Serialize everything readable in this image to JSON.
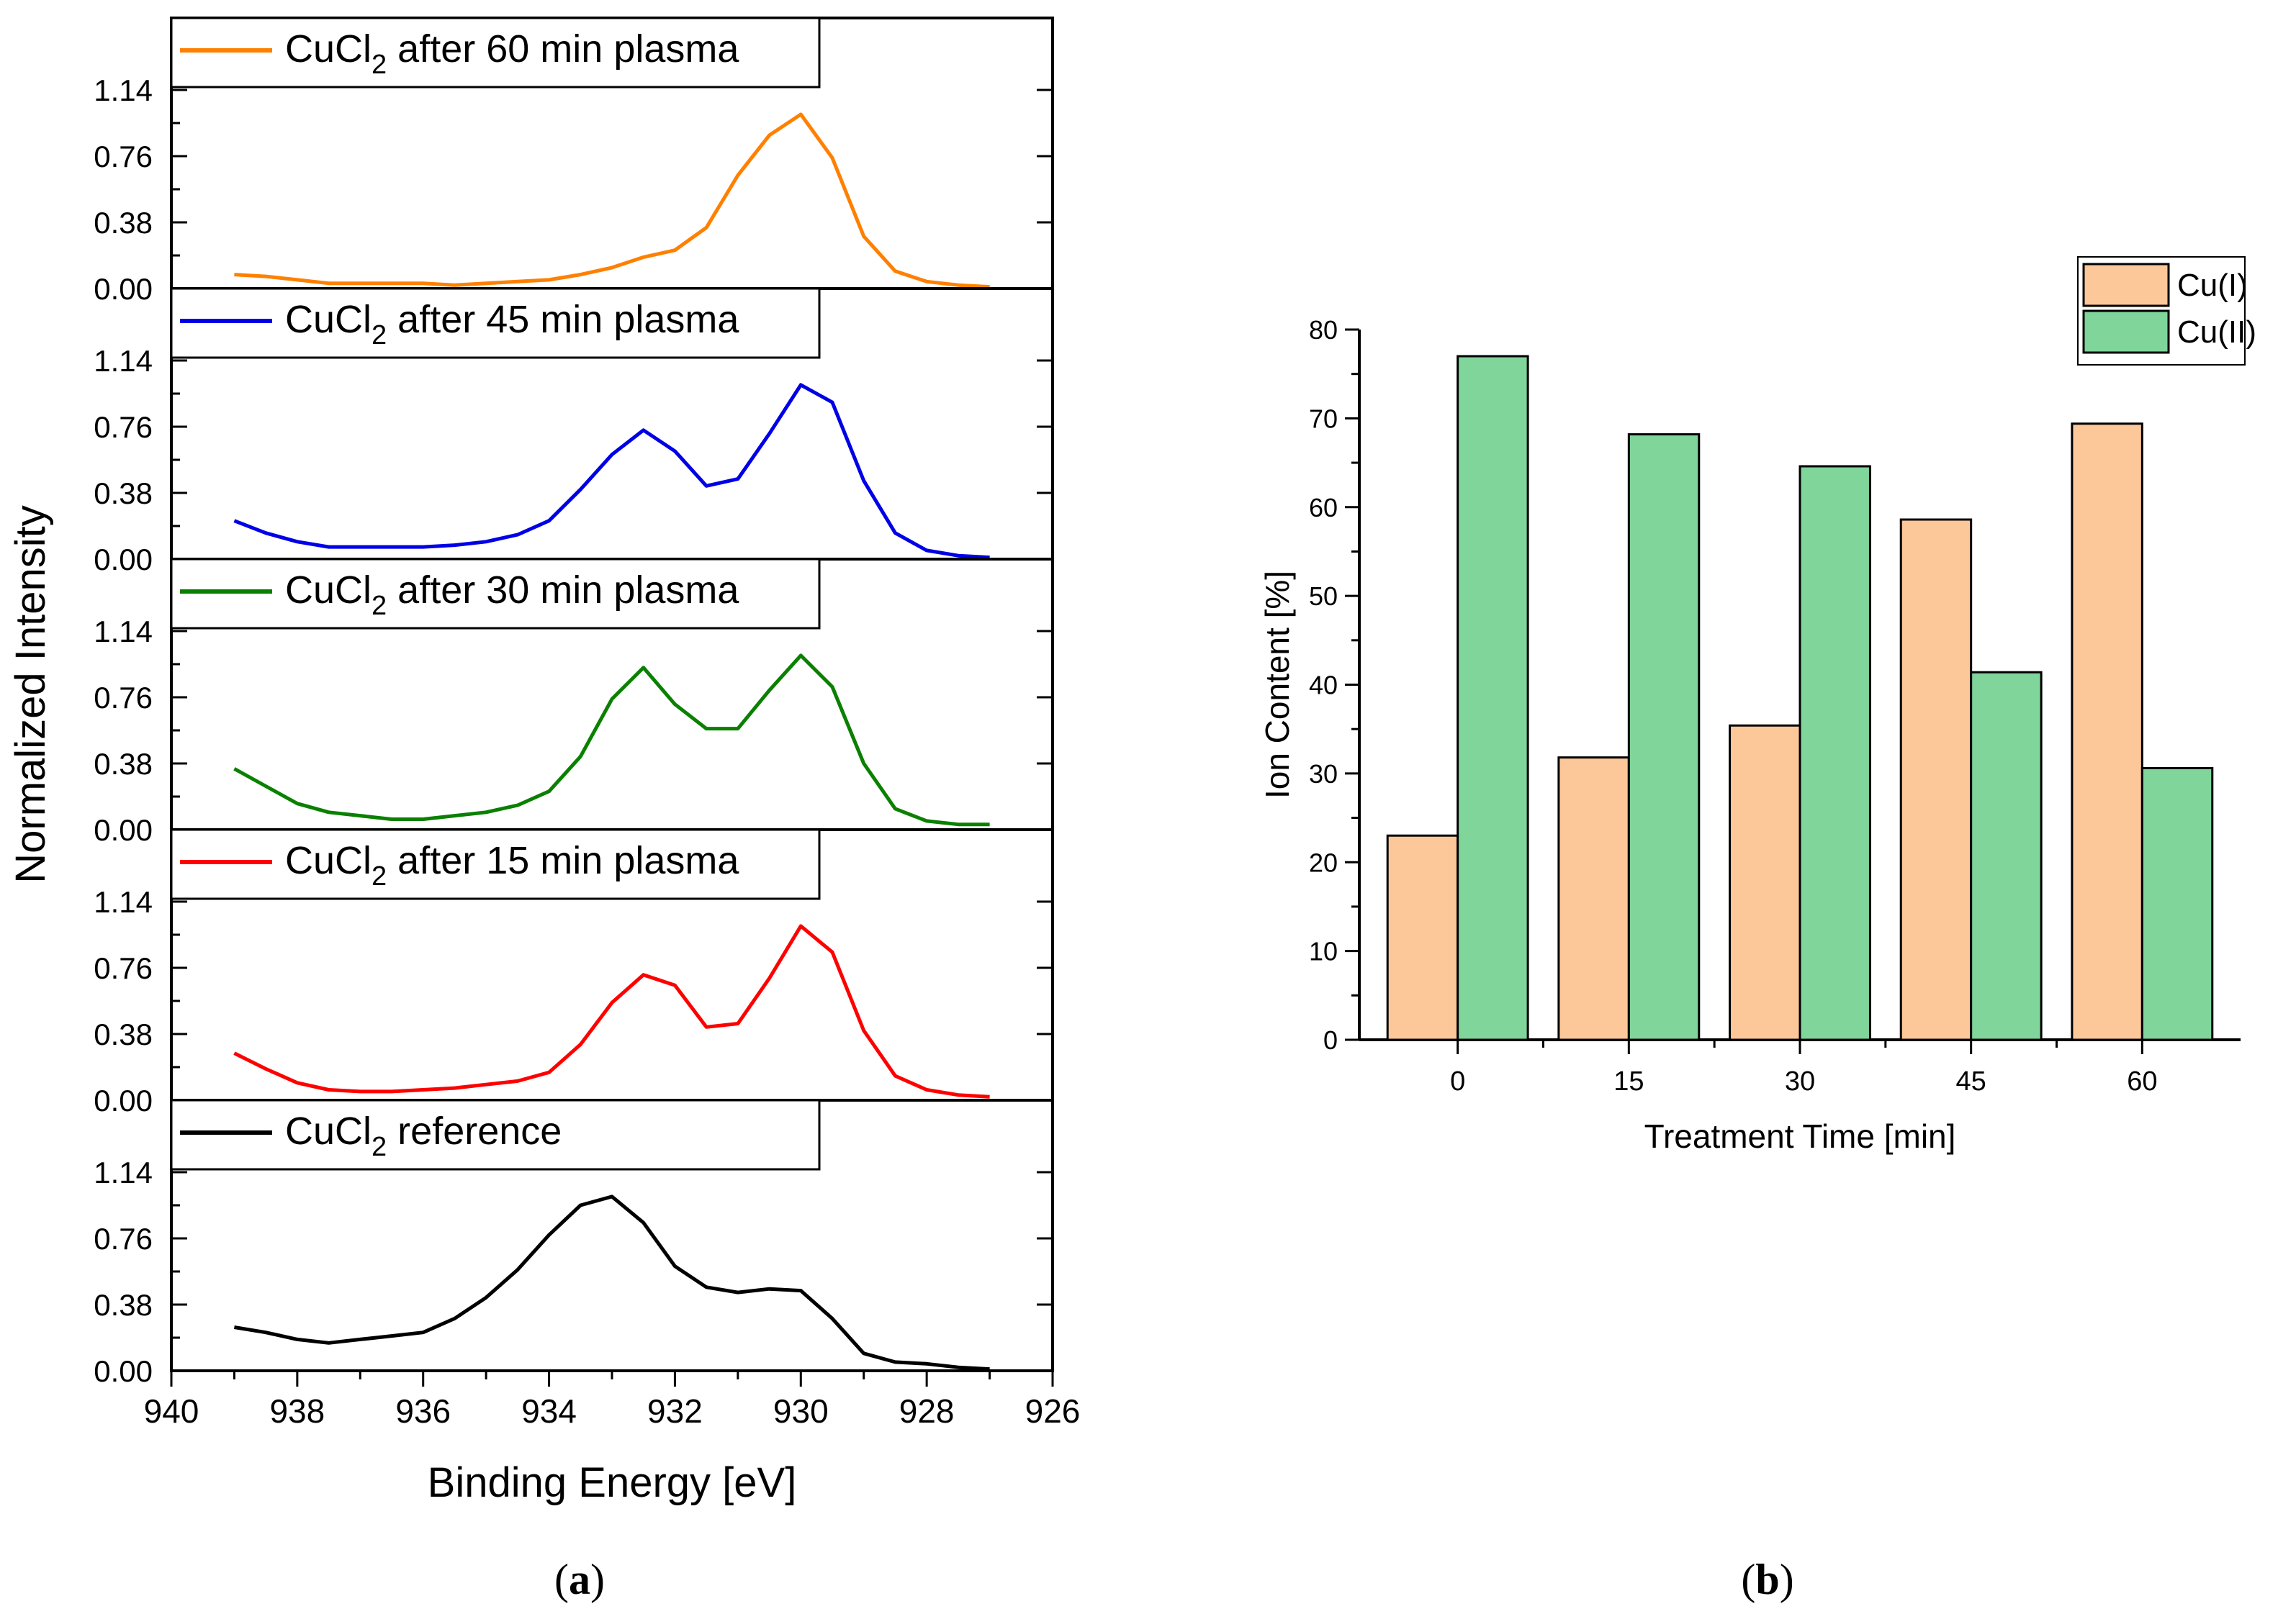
{
  "colors": {
    "orange": "#FF8000",
    "blue": "#0000E6",
    "green": "#0A8000",
    "red": "#FF0000",
    "black": "#000000",
    "cu1_fill": "#FDC899",
    "cu2_fill": "#7FD59A"
  },
  "panel_labels": {
    "a": "a",
    "b": "b"
  },
  "chart_data": [
    {
      "type": "line",
      "layout": "stacked panels",
      "xlabel": "Binding Energy [eV]",
      "ylabel": "Normalized Intensity",
      "xlim": [
        940,
        926
      ],
      "x_reversed": true,
      "xticks": [
        "940",
        "938",
        "936",
        "934",
        "932",
        "930",
        "928",
        "926"
      ],
      "ylim": [
        0,
        1.14
      ],
      "yticks": [
        "0.00",
        "0.38",
        "0.76",
        "1.14"
      ],
      "legend_placement": "top-left of each panel",
      "panels": [
        {
          "legend_main": "CuCl",
          "legend_sub": "2",
          "legend_rest": " after 60 min plasma",
          "color_key": "orange",
          "x": [
            939,
            938.5,
            938,
            937.5,
            937,
            936.5,
            936,
            935.5,
            935,
            934.5,
            934,
            933.5,
            933,
            932.5,
            932,
            931.5,
            931,
            930.5,
            930,
            929.5,
            929,
            928.5,
            928,
            927.5,
            927
          ],
          "y": [
            0.08,
            0.07,
            0.05,
            0.03,
            0.03,
            0.03,
            0.03,
            0.02,
            0.03,
            0.04,
            0.05,
            0.08,
            0.12,
            0.18,
            0.22,
            0.35,
            0.65,
            0.88,
            1.0,
            0.75,
            0.3,
            0.1,
            0.04,
            0.02,
            0.01
          ]
        },
        {
          "legend_main": "CuCl",
          "legend_sub": "2",
          "legend_rest": " after 45 min plasma",
          "color_key": "blue",
          "x": [
            939,
            938.5,
            938,
            937.5,
            937,
            936.5,
            936,
            935.5,
            935,
            934.5,
            934,
            933.5,
            933,
            932.5,
            932,
            931.5,
            931,
            930.5,
            930,
            929.5,
            929,
            928.5,
            928,
            927.5,
            927
          ],
          "y": [
            0.22,
            0.15,
            0.1,
            0.07,
            0.07,
            0.07,
            0.07,
            0.08,
            0.1,
            0.14,
            0.22,
            0.4,
            0.6,
            0.74,
            0.62,
            0.42,
            0.46,
            0.72,
            1.0,
            0.9,
            0.45,
            0.15,
            0.05,
            0.02,
            0.01
          ]
        },
        {
          "legend_main": "CuCl",
          "legend_sub": "2",
          "legend_rest": " after 30 min plasma",
          "color_key": "green",
          "x": [
            939,
            938.5,
            938,
            937.5,
            937,
            936.5,
            936,
            935.5,
            935,
            934.5,
            934,
            933.5,
            933,
            932.5,
            932,
            931.5,
            931,
            930.5,
            930,
            929.5,
            929,
            928.5,
            928,
            927.5,
            927
          ],
          "y": [
            0.35,
            0.25,
            0.15,
            0.1,
            0.08,
            0.06,
            0.06,
            0.08,
            0.1,
            0.14,
            0.22,
            0.42,
            0.75,
            0.93,
            0.72,
            0.58,
            0.58,
            0.8,
            1.0,
            0.82,
            0.38,
            0.12,
            0.05,
            0.03,
            0.03
          ]
        },
        {
          "legend_main": "CuCl",
          "legend_sub": "2",
          "legend_rest": " after 15 min plasma",
          "color_key": "red",
          "x": [
            939,
            938.5,
            938,
            937.5,
            937,
            936.5,
            936,
            935.5,
            935,
            934.5,
            934,
            933.5,
            933,
            932.5,
            932,
            931.5,
            931,
            930.5,
            930,
            929.5,
            929,
            928.5,
            928,
            927.5,
            927
          ],
          "y": [
            0.27,
            0.18,
            0.1,
            0.06,
            0.05,
            0.05,
            0.06,
            0.07,
            0.09,
            0.11,
            0.16,
            0.32,
            0.56,
            0.72,
            0.66,
            0.42,
            0.44,
            0.7,
            1.0,
            0.85,
            0.4,
            0.14,
            0.06,
            0.03,
            0.02
          ]
        },
        {
          "legend_main": "CuCl",
          "legend_sub": "2",
          "legend_rest": " reference",
          "color_key": "black",
          "x": [
            939,
            938.5,
            938,
            937.5,
            937,
            936.5,
            936,
            935.5,
            935,
            934.5,
            934,
            933.5,
            933,
            932.5,
            932,
            931.5,
            931,
            930.5,
            930,
            929.5,
            929,
            928.5,
            928,
            927.5,
            927
          ],
          "y": [
            0.25,
            0.22,
            0.18,
            0.16,
            0.18,
            0.2,
            0.22,
            0.3,
            0.42,
            0.58,
            0.78,
            0.95,
            1.0,
            0.85,
            0.6,
            0.48,
            0.45,
            0.47,
            0.46,
            0.3,
            0.1,
            0.05,
            0.04,
            0.02,
            0.01
          ]
        }
      ]
    },
    {
      "type": "bar",
      "xlabel": "Treatment Time [min]",
      "ylabel": "Ion Content [%]",
      "ylim": [
        0,
        80
      ],
      "yticks": [
        "0",
        "10",
        "20",
        "30",
        "40",
        "50",
        "60",
        "70",
        "80"
      ],
      "categories": [
        "0",
        "15",
        "30",
        "45",
        "60"
      ],
      "legend_placement": "top-right",
      "series": [
        {
          "name": "Cu(I)",
          "color_key": "cu1_fill",
          "values": [
            23.0,
            31.8,
            35.4,
            58.6,
            69.4
          ]
        },
        {
          "name": "Cu(II)",
          "color_key": "cu2_fill",
          "values": [
            77.0,
            68.2,
            64.6,
            41.4,
            30.6
          ]
        }
      ]
    }
  ]
}
